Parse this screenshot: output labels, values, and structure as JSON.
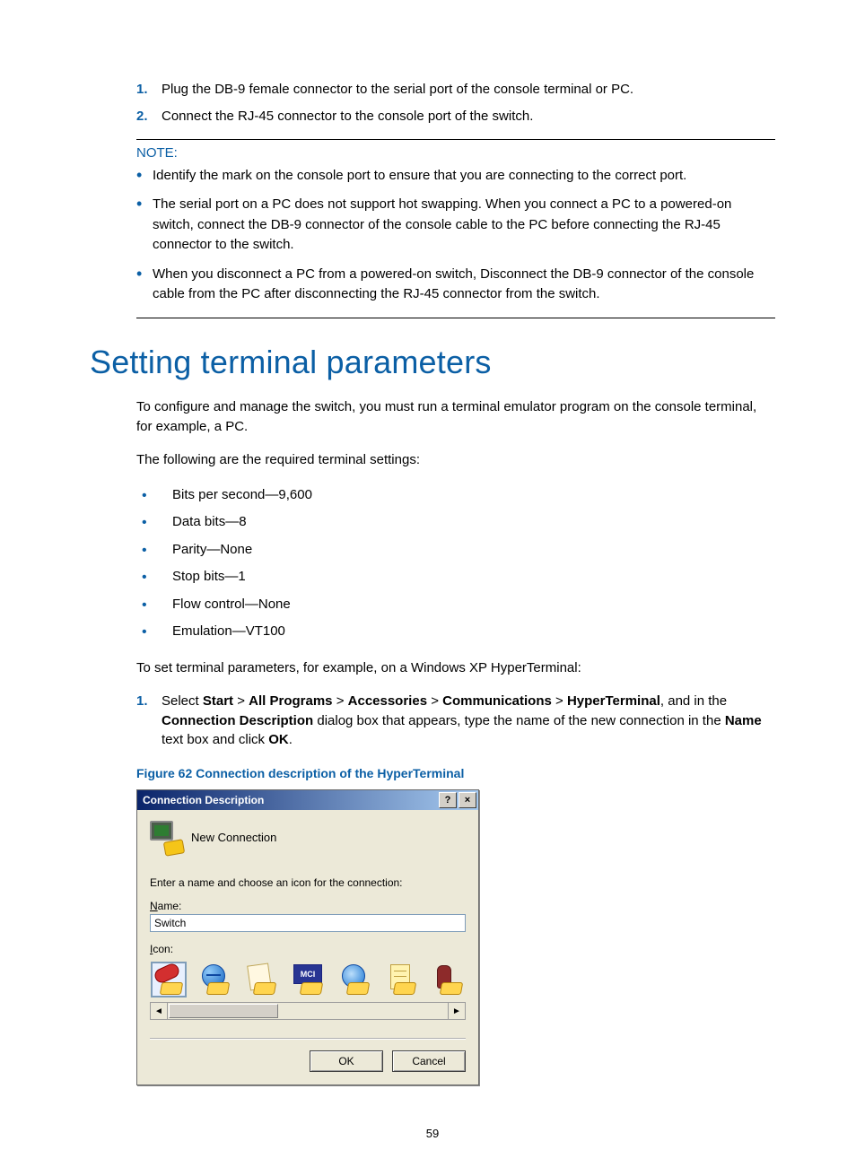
{
  "page_number": "59",
  "steps_top": [
    {
      "num": "1.",
      "text": "Plug the DB-9 female connector to the serial port of the console terminal or PC."
    },
    {
      "num": "2.",
      "text": "Connect the RJ-45 connector to the console port of the switch."
    }
  ],
  "note_label": "NOTE:",
  "note_items": [
    "Identify the mark on the console port to ensure that you are connecting to the correct port.",
    "The serial port on a PC does not support hot swapping. When you connect a PC to a powered-on switch, connect the DB-9 connector of the console cable to the PC before connecting the RJ-45 connector to the switch.",
    "When you disconnect a PC from a powered-on switch, Disconnect the DB-9 connector of the console cable from the PC after disconnecting the RJ-45 connector from the switch."
  ],
  "heading": "Setting terminal parameters",
  "para1": "To configure and manage the switch, you must run a terminal emulator program on the console terminal, for example, a PC.",
  "para2": "The following are the required terminal settings:",
  "settings": [
    "Bits per second—9,600",
    "Data bits—8",
    "Parity—None",
    "Stop bits—1",
    "Flow control—None",
    "Emulation—VT100"
  ],
  "para3": "To set terminal parameters, for example, on a Windows XP HyperTerminal:",
  "step_select": {
    "num": "1.",
    "prefix": "Select ",
    "path": [
      "Start",
      "All Programs",
      "Accessories",
      "Communications",
      "HyperTerminal"
    ],
    "sep": " > ",
    "mid": ", and in the ",
    "bold2": "Connection Description",
    "mid2": " dialog box that appears, type the name of the new connection in the ",
    "bold3": "Name",
    "mid3": " text box and click ",
    "bold4": "OK",
    "suffix": "."
  },
  "figure_caption": "Figure 62 Connection description of the HyperTerminal",
  "dialog": {
    "title": "Connection Description",
    "help_btn": "?",
    "close_btn": "×",
    "newconn_label": "New Connection",
    "instruction": "Enter a name and choose an icon for the connection:",
    "name_label_u": "N",
    "name_label_rest": "ame:",
    "name_value": "Switch",
    "icon_label_u": "I",
    "icon_label_rest": "con:",
    "mci_text": "MCI",
    "scroll_left": "◄",
    "scroll_right": "►",
    "ok": "OK",
    "cancel": "Cancel"
  },
  "colors": {
    "accent": "#0b5fa5",
    "dialog_bg": "#ece9d8",
    "titlebar_from": "#0a246a",
    "titlebar_to": "#a6caf0"
  }
}
